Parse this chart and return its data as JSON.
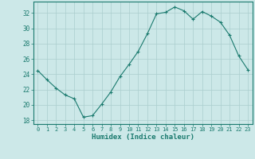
{
  "x": [
    0,
    1,
    2,
    3,
    4,
    5,
    6,
    7,
    8,
    9,
    10,
    11,
    12,
    13,
    14,
    15,
    16,
    17,
    18,
    19,
    20,
    21,
    22,
    23
  ],
  "y": [
    24.5,
    23.3,
    22.2,
    21.3,
    20.8,
    18.4,
    18.6,
    20.1,
    21.7,
    23.7,
    25.3,
    27.0,
    29.3,
    31.9,
    32.1,
    32.8,
    32.3,
    31.2,
    32.2,
    31.6,
    30.8,
    29.1,
    26.4,
    24.6
  ],
  "xlabel": "Humidex (Indice chaleur)",
  "xlim": [
    -0.5,
    23.5
  ],
  "ylim": [
    17.5,
    33.5
  ],
  "yticks": [
    18,
    20,
    22,
    24,
    26,
    28,
    30,
    32
  ],
  "xticks": [
    0,
    1,
    2,
    3,
    4,
    5,
    6,
    7,
    8,
    9,
    10,
    11,
    12,
    13,
    14,
    15,
    16,
    17,
    18,
    19,
    20,
    21,
    22,
    23
  ],
  "line_color": "#1a7a6e",
  "marker": "+",
  "bg_color": "#cce8e8",
  "grid_color": "#aacece",
  "axis_color": "#1a7a6e",
  "tick_color": "#1a7a6e",
  "label_color": "#1a7a6e"
}
